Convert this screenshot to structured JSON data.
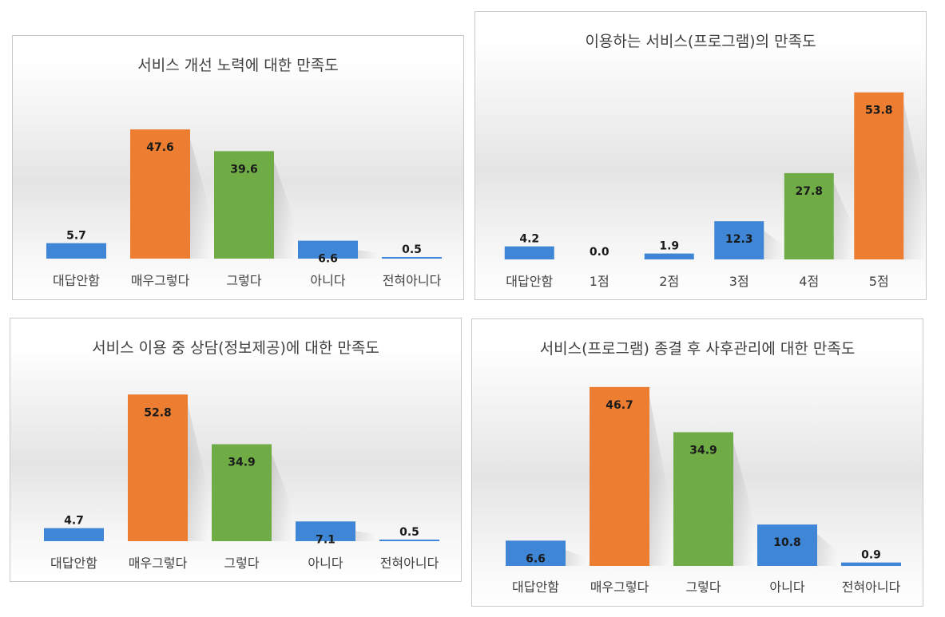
{
  "colors": {
    "blue": "#3f86d6",
    "orange": "#ed7d31",
    "green": "#6fac46",
    "label": "#1a1a1a",
    "cat": "#404040"
  },
  "chart_data": [
    {
      "type": "bar",
      "title": "서비스 개선 노력에 대한 만족도",
      "categories": [
        "대답안함",
        "매우그렇다",
        "그렇다",
        "아니다",
        "전혀아니다"
      ],
      "values": [
        5.7,
        47.6,
        39.6,
        6.6,
        0.5
      ],
      "colors": [
        "blue",
        "orange",
        "green",
        "blue",
        "blue"
      ],
      "ylim": [
        0,
        50
      ],
      "grid": false,
      "legend": "none"
    },
    {
      "type": "bar",
      "title": "이용하는 서비스(프로그램)의 만족도",
      "categories": [
        "대답안함",
        "1점",
        "2점",
        "3점",
        "4점",
        "5점"
      ],
      "values": [
        4.2,
        0.0,
        1.9,
        12.3,
        27.8,
        53.8
      ],
      "colors": [
        "blue",
        "blue",
        "blue",
        "blue",
        "green",
        "orange"
      ],
      "ylim": [
        0,
        55
      ],
      "grid": false,
      "legend": "none"
    },
    {
      "type": "bar",
      "title": "서비스 이용 중 상담(정보제공)에 대한 만족도",
      "categories": [
        "대답안함",
        "매우그렇다",
        "그렇다",
        "아니다",
        "전혀아니다"
      ],
      "values": [
        4.7,
        52.8,
        34.9,
        7.1,
        0.5
      ],
      "colors": [
        "blue",
        "orange",
        "green",
        "blue",
        "blue"
      ],
      "ylim": [
        0,
        55
      ],
      "grid": false,
      "legend": "none"
    },
    {
      "type": "bar",
      "title": "서비스(프로그램) 종결 후 사후관리에 대한 만족도",
      "categories": [
        "대답안함",
        "매우그렇다",
        "그렇다",
        "아니다",
        "전혀아니다"
      ],
      "values": [
        6.6,
        46.7,
        34.9,
        10.8,
        0.9
      ],
      "colors": [
        "blue",
        "orange",
        "green",
        "blue",
        "blue"
      ],
      "ylim": [
        0,
        50
      ],
      "grid": false,
      "legend": "none"
    }
  ]
}
